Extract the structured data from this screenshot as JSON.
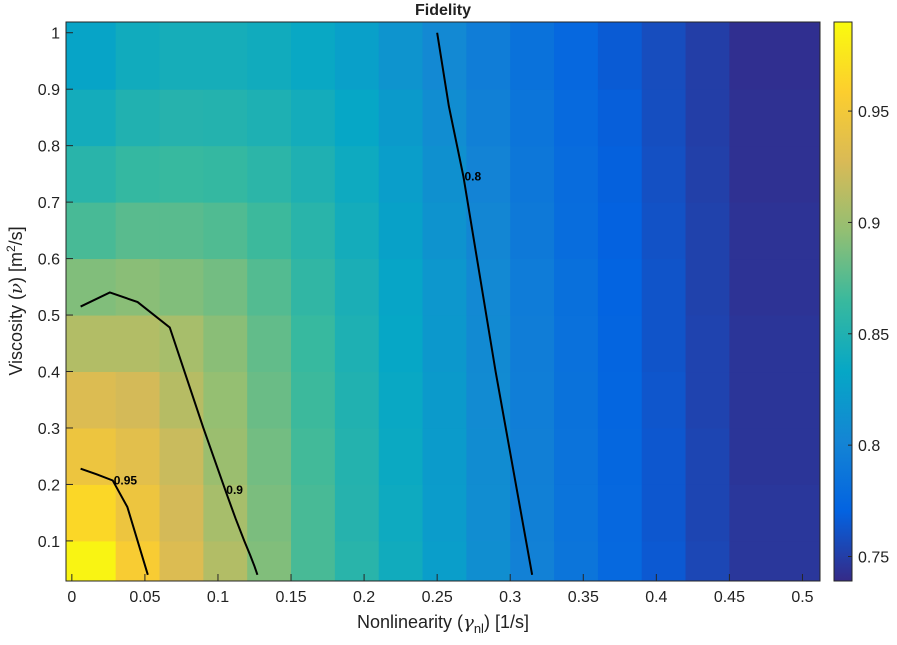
{
  "chart_data": {
    "type": "heatmap",
    "title": "Fidelity",
    "xlabel_parts": [
      "Nonlinearity (",
      "γ",
      "nl",
      ") [1/s]"
    ],
    "ylabel_parts": [
      "Viscosity (",
      "ν",
      ") [m",
      "2",
      "/s]"
    ],
    "xedges": [
      -0.004,
      0.03,
      0.06,
      0.09,
      0.12,
      0.15,
      0.18,
      0.21,
      0.24,
      0.27,
      0.3,
      0.33,
      0.36,
      0.39,
      0.42,
      0.45,
      0.512
    ],
    "yedges": [
      0.029,
      0.1,
      0.2,
      0.3,
      0.4,
      0.5,
      0.6,
      0.7,
      0.8,
      0.9,
      1.019
    ],
    "z": [
      [
        0.985,
        0.955,
        0.93,
        0.91,
        0.89,
        0.87,
        0.855,
        0.84,
        0.825,
        0.81,
        0.798,
        0.787,
        0.776,
        0.765,
        0.755,
        0.746
      ],
      [
        0.965,
        0.945,
        0.925,
        0.905,
        0.888,
        0.87,
        0.853,
        0.838,
        0.823,
        0.809,
        0.797,
        0.786,
        0.775,
        0.764,
        0.754,
        0.746
      ],
      [
        0.945,
        0.935,
        0.92,
        0.9,
        0.885,
        0.868,
        0.852,
        0.836,
        0.822,
        0.808,
        0.796,
        0.785,
        0.774,
        0.764,
        0.754,
        0.745
      ],
      [
        0.93,
        0.925,
        0.912,
        0.897,
        0.882,
        0.866,
        0.85,
        0.835,
        0.821,
        0.807,
        0.795,
        0.784,
        0.773,
        0.763,
        0.753,
        0.745
      ],
      [
        0.91,
        0.91,
        0.905,
        0.893,
        0.879,
        0.864,
        0.848,
        0.833,
        0.819,
        0.806,
        0.794,
        0.783,
        0.772,
        0.762,
        0.753,
        0.745
      ],
      [
        0.89,
        0.893,
        0.89,
        0.885,
        0.874,
        0.86,
        0.846,
        0.831,
        0.818,
        0.805,
        0.793,
        0.782,
        0.771,
        0.762,
        0.752,
        0.744
      ],
      [
        0.87,
        0.876,
        0.876,
        0.873,
        0.866,
        0.855,
        0.842,
        0.828,
        0.815,
        0.803,
        0.791,
        0.78,
        0.77,
        0.761,
        0.752,
        0.744
      ],
      [
        0.855,
        0.862,
        0.864,
        0.862,
        0.857,
        0.849,
        0.838,
        0.825,
        0.812,
        0.8,
        0.789,
        0.779,
        0.769,
        0.76,
        0.751,
        0.743
      ],
      [
        0.842,
        0.85,
        0.853,
        0.852,
        0.848,
        0.842,
        0.833,
        0.821,
        0.809,
        0.797,
        0.787,
        0.777,
        0.768,
        0.759,
        0.75,
        0.743
      ],
      [
        0.83,
        0.84,
        0.843,
        0.843,
        0.84,
        0.835,
        0.827,
        0.816,
        0.805,
        0.794,
        0.784,
        0.775,
        0.766,
        0.758,
        0.75,
        0.742
      ]
    ],
    "contours": [
      {
        "level": 0.8,
        "color": "#000000",
        "x": [
          0.25,
          0.258,
          0.268,
          0.29,
          0.315
        ],
        "y": [
          1.0,
          0.87,
          0.745,
          0.4,
          0.04
        ]
      },
      {
        "level": 0.9,
        "color": "#000000",
        "x": [
          0.006,
          0.026,
          0.045,
          0.067,
          0.09,
          0.105,
          0.112,
          0.118,
          0.122,
          0.125,
          0.127
        ],
        "y": [
          0.515,
          0.54,
          0.523,
          0.478,
          0.3,
          0.19,
          0.14,
          0.1,
          0.075,
          0.055,
          0.04
        ]
      },
      {
        "level": 0.95,
        "color": "#000000",
        "x": [
          0.006,
          0.017,
          0.028,
          0.038,
          0.052
        ],
        "y": [
          0.228,
          0.218,
          0.207,
          0.16,
          0.04
        ]
      }
    ],
    "xlim": [
      -0.004,
      0.512
    ],
    "ylim": [
      0.029,
      1.019
    ],
    "xticks": [
      0,
      0.05,
      0.1,
      0.15,
      0.2,
      0.25,
      0.3,
      0.35,
      0.4,
      0.45,
      0.5
    ],
    "yticks": [
      0.1,
      0.2,
      0.3,
      0.4,
      0.5,
      0.6,
      0.7,
      0.8,
      0.9,
      1
    ],
    "clim": [
      0.739,
      0.99
    ],
    "cticks": [
      0.75,
      0.8,
      0.85,
      0.9,
      0.95
    ],
    "colormap": [
      "#352a87",
      "#0363e1",
      "#1485d4",
      "#06a7c6",
      "#38b99e",
      "#92bf73",
      "#d9ba56",
      "#fcce2e",
      "#f9fb0e"
    ]
  }
}
